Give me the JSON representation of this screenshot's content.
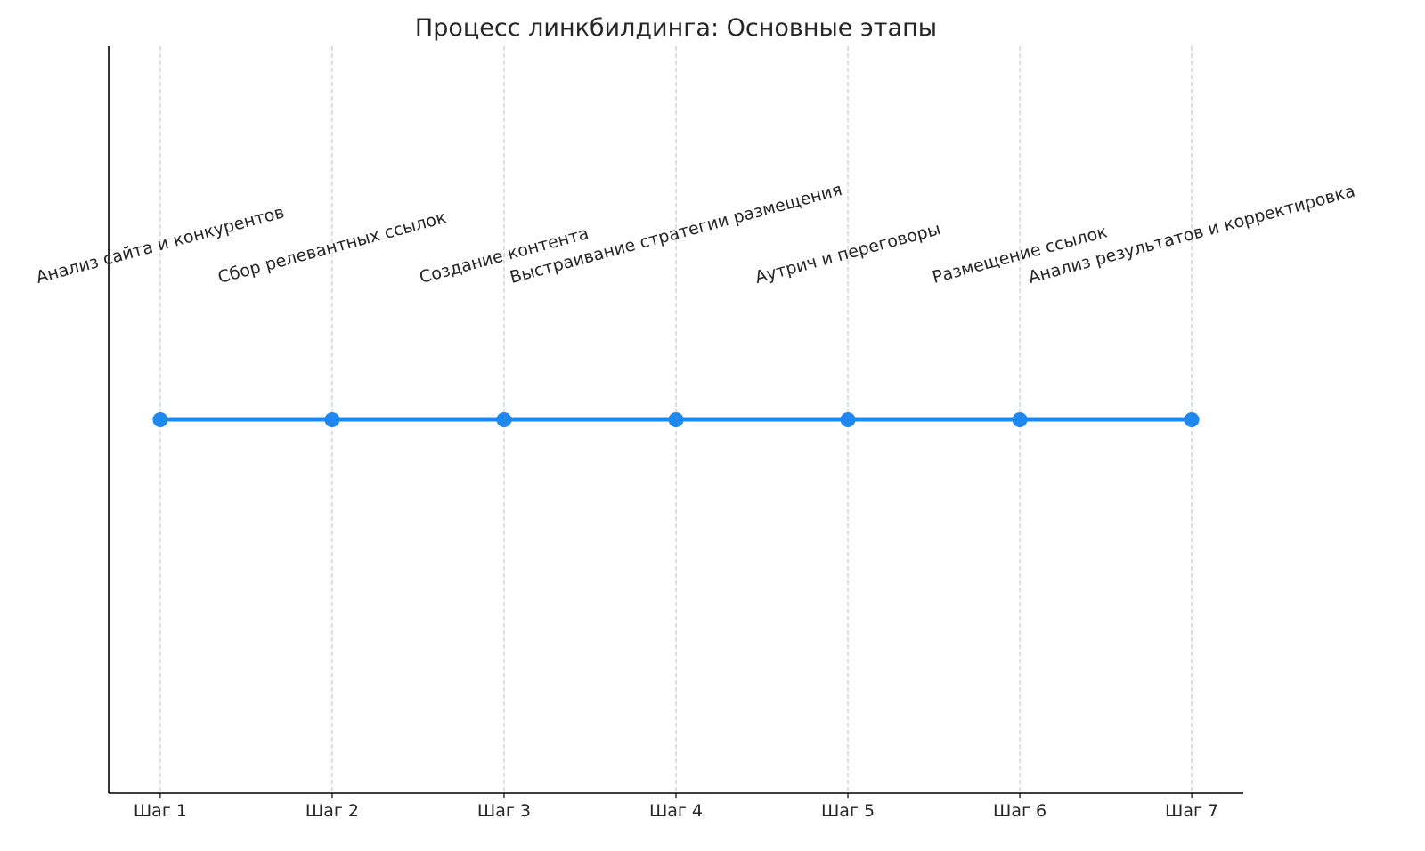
{
  "chart_data": {
    "type": "line",
    "title": "Процесс линкбилдинга: Основные этапы",
    "xlabel": "",
    "ylabel": "",
    "categories": [
      "Шаг 1",
      "Шаг 2",
      "Шаг 3",
      "Шаг 4",
      "Шаг 5",
      "Шаг 6",
      "Шаг 7"
    ],
    "x": [
      1,
      2,
      3,
      4,
      5,
      6,
      7
    ],
    "values": [
      1,
      1,
      1,
      1,
      1,
      1,
      1
    ],
    "annotations": [
      "Анализ сайта и конкурентов",
      "Сбор релевантных ссылок",
      "Создание контента",
      "Выстраивание стратегии размещения",
      "Аутрич и переговоры",
      "Размещение ссылок",
      "Анализ результатов и корректировка"
    ],
    "xlim": [
      0.7,
      7.3
    ],
    "ylim": [
      0,
      2
    ],
    "y_ticks_visible": false,
    "grid": "vertical dashed",
    "line_color": "#1e88f0",
    "marker": "circle"
  }
}
